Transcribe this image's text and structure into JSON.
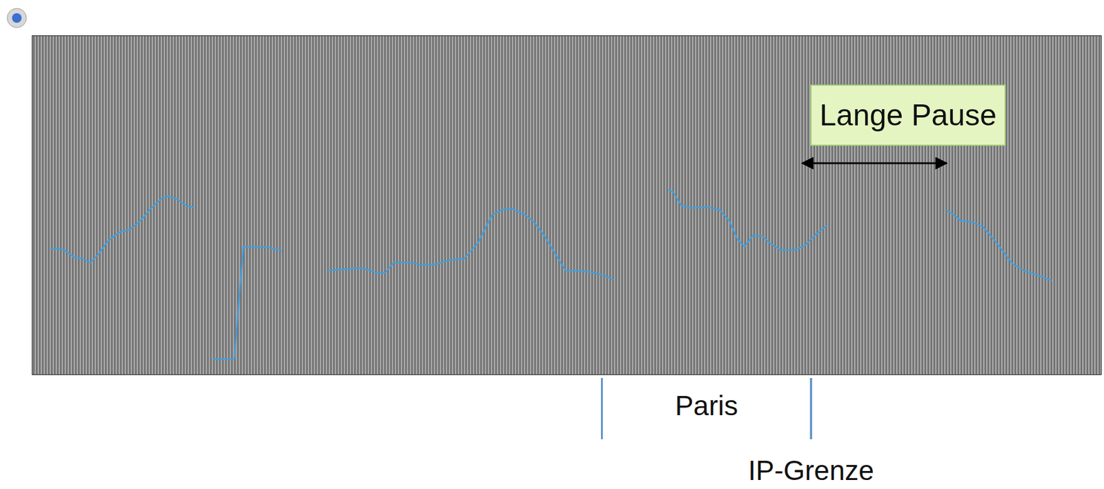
{
  "chart_data": {
    "type": "line",
    "tick_labels": false,
    "xlim": [
      0,
      100
    ],
    "ylim": [
      0,
      100
    ],
    "x": [
      1.77,
      2.95,
      3.94,
      4.79,
      5.45,
      6.24,
      7.03,
      8.08,
      9.19,
      10.18,
      11.16,
      12.15,
      12.8,
      13.59,
      14.45,
      15.1,
      16.0,
      16.94,
      18.91,
      19.76,
      22.0,
      23.31,
      25.5,
      27.71,
      29.22,
      30.86,
      32.17,
      33.03,
      33.81,
      35.13,
      36.44,
      37.75,
      39.07,
      40.38,
      41.69,
      43.01,
      44.0,
      44.98,
      45.96,
      46.95,
      47.93,
      48.92,
      49.9,
      50.89,
      52.2,
      53.51,
      54.37,
      57.0,
      59.55,
      59.95,
      60.74,
      61.72,
      63.36,
      64.35,
      65.2,
      65.99,
      66.64,
      67.43,
      68.29,
      68.94,
      69.93,
      71.24,
      72.23,
      73.21,
      74.33,
      80.0,
      85.55,
      86.34,
      86.87,
      87.98,
      88.97,
      90.28,
      91.73,
      92.91,
      93.9,
      95.34
    ],
    "series": [
      {
        "color": "#3f9fe0",
        "line_style": "solid",
        "values": [
          37.3,
          36.9,
          34.6,
          34.2,
          33.0,
          35.7,
          39.2,
          41.9,
          42.9,
          45.6,
          49.2,
          52.1,
          52.7,
          51.7,
          49.8,
          49.4,
          null,
          4.6,
          4.6,
          37.8,
          37.6,
          36.5,
          null,
          30.7,
          31.1,
          31.5,
          30.1,
          30.1,
          33.0,
          33.2,
          32.4,
          32.6,
          33.8,
          34.2,
          38.8,
          47.1,
          48.8,
          48.8,
          47.5,
          45.0,
          40.9,
          35.7,
          30.7,
          30.7,
          30.3,
          29.3,
          28.0,
          null,
          54.4,
          53.9,
          49.8,
          49.2,
          49.4,
          48.5,
          45.4,
          39.8,
          37.8,
          41.1,
          40.9,
          39.0,
          36.9,
          36.7,
          38.0,
          41.1,
          44.0,
          null,
          48.5,
          46.9,
          45.4,
          45.0,
          43.6,
          38.6,
          32.6,
          30.5,
          29.5,
          27.8
        ]
      }
    ],
    "annotations": [
      {
        "text": "Paris",
        "x": [
          53.32,
          72.88
        ],
        "marker": "boundary"
      },
      {
        "text": "IP-Grenze",
        "x": 72.88,
        "marker": "boundary"
      },
      {
        "text": "Lange Pause",
        "x": [
          72.88,
          85.69
        ],
        "marker": "arrow"
      }
    ]
  }
}
